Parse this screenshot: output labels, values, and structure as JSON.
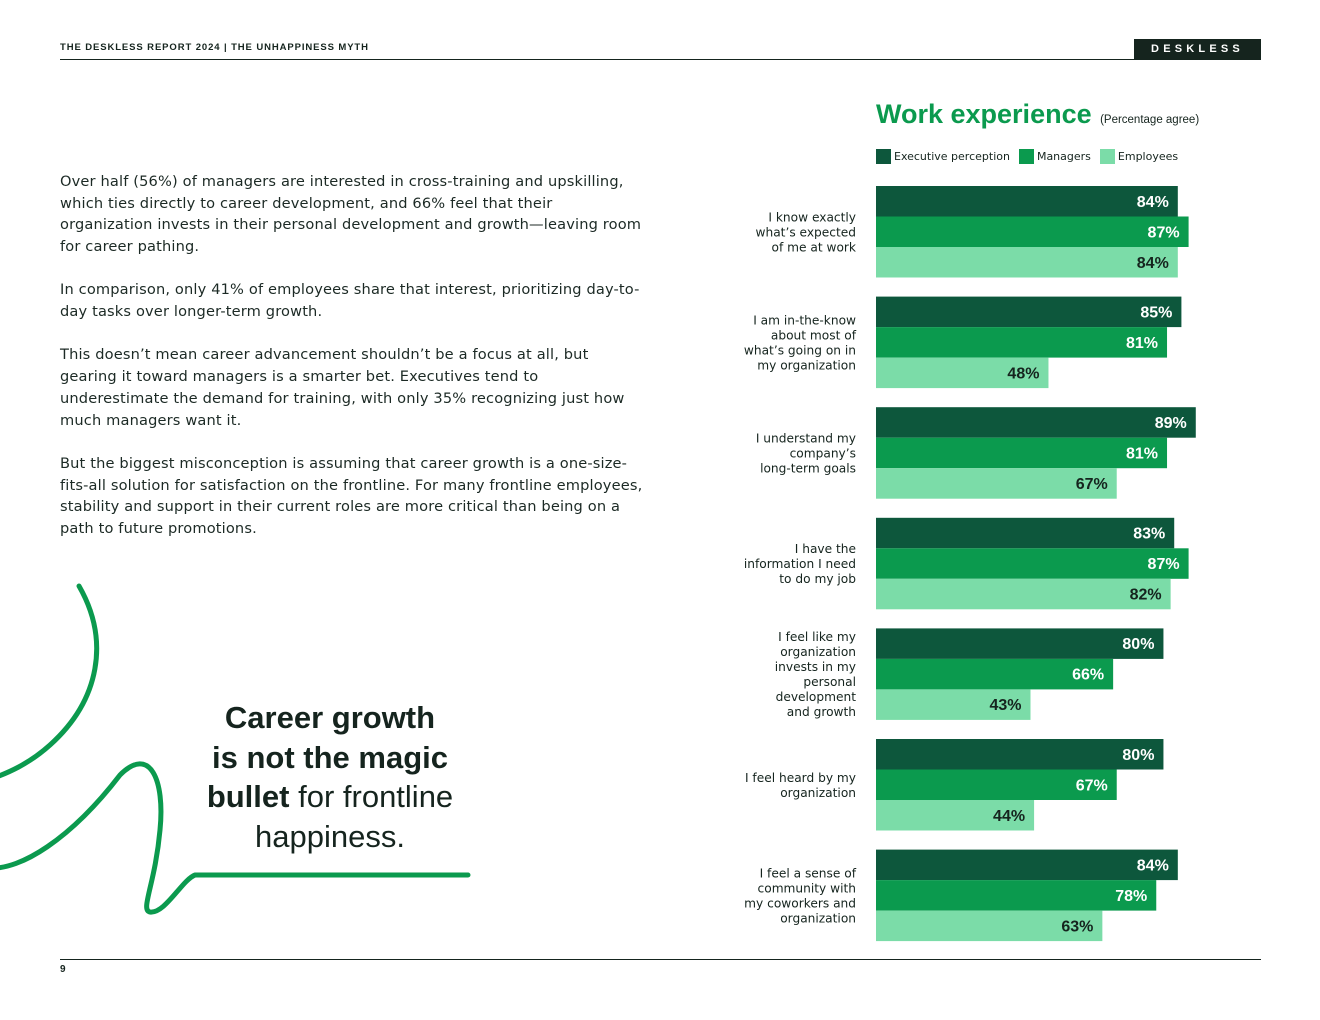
{
  "header": {
    "title": "THE DESKLESS REPORT 2024  |  THE UNHAPPINESS MYTH",
    "brand": "DESKLESS"
  },
  "body": {
    "p1": "Over half (56%) of managers are interested in cross-training and upskilling, which ties directly to career development, and 66% feel that their organization invests in their personal development and growth—leaving room for career pathing.",
    "p2": "In comparison, only 41% of employees share that interest, prioritizing day-to-day tasks over longer-term growth.",
    "p3": "This doesn’t mean career advancement shouldn’t be a focus at all, but gearing it toward managers is a smarter bet. Executives tend to underestimate the demand for training, with only 35% recognizing just how much managers want it.",
    "p4": "But the biggest misconception is assuming that career growth is a one-size-fits-all solution for satisfaction on the frontline. For many frontline employees, stability and support in their current roles are more critical than being on a path to future promotions."
  },
  "callout": {
    "line1": "Career growth",
    "line2": "is not the magic",
    "line3_bold": "bullet",
    "line3_rest": " for frontline",
    "line4": "happiness."
  },
  "footer": {
    "page": "9"
  },
  "colors": {
    "executive": "#0d573c",
    "managers": "#0b9a4e",
    "employees": "#7bdca8",
    "accent": "#0b9a4e",
    "ink": "#15241e"
  },
  "chart_data": {
    "type": "bar",
    "orientation": "horizontal",
    "title": "Work experience",
    "subtitle": "(Percentage agree)",
    "unit": "%",
    "xlim": [
      0,
      100
    ],
    "categories": [
      [
        "I know  exactly",
        "what’s expected",
        "of me at work"
      ],
      [
        "I am in-the-know",
        "about most of",
        "what’s going on in",
        "my organization"
      ],
      [
        "I understand my",
        "company’s",
        "long-term goals"
      ],
      [
        "I have the",
        "information I need",
        "to do my job"
      ],
      [
        "I feel like my",
        "organization",
        "invests in my",
        "personal",
        "development",
        "and growth"
      ],
      [
        "I feel heard by my",
        "organization"
      ],
      [
        "I feel a sense of",
        "community with",
        "my coworkers and",
        "organization"
      ]
    ],
    "series": [
      {
        "name": "Executive perception",
        "values": [
          84,
          85,
          89,
          83,
          80,
          80,
          84
        ]
      },
      {
        "name": "Managers",
        "values": [
          87,
          81,
          81,
          87,
          66,
          67,
          78
        ]
      },
      {
        "name": "Employees",
        "values": [
          84,
          48,
          67,
          82,
          43,
          44,
          63
        ]
      }
    ]
  }
}
